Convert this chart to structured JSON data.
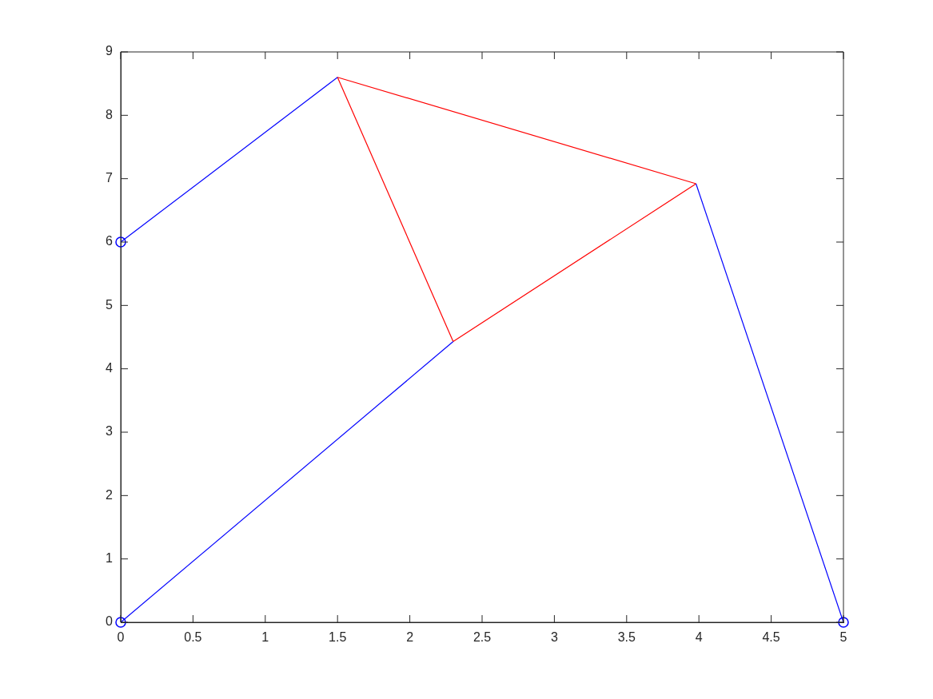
{
  "chart_data": {
    "type": "line",
    "xlim": [
      0,
      5
    ],
    "ylim": [
      0,
      9
    ],
    "xticks": [
      0,
      0.5,
      1,
      1.5,
      2,
      2.5,
      3,
      3.5,
      4,
      4.5,
      5
    ],
    "yticks": [
      0,
      1,
      2,
      3,
      4,
      5,
      6,
      7,
      8,
      9
    ],
    "grid": false,
    "legend": false,
    "marker": "none",
    "line_style": "solid",
    "series": [
      {
        "color": "#0000ff",
        "x": [
          0,
          1.5
        ],
        "values": [
          6,
          8.6
        ]
      },
      {
        "color": "#0000ff",
        "x": [
          0,
          2.3
        ],
        "values": [
          0,
          4.43
        ]
      },
      {
        "color": "#0000ff",
        "x": [
          3.98,
          5
        ],
        "values": [
          6.92,
          0
        ]
      },
      {
        "color": "#ff0000",
        "x": [
          1.5,
          3.98
        ],
        "values": [
          8.6,
          6.92
        ]
      },
      {
        "color": "#ff0000",
        "x": [
          2.3,
          3.98
        ],
        "values": [
          4.43,
          6.92
        ]
      },
      {
        "color": "#ff0000",
        "x": [
          1.5,
          2.3
        ],
        "values": [
          8.6,
          4.43
        ]
      },
      {
        "type": "scatter",
        "color": "#0000ff",
        "marker": "circle",
        "x": [
          0,
          0,
          5
        ],
        "values": [
          6,
          0,
          0
        ]
      }
    ]
  }
}
